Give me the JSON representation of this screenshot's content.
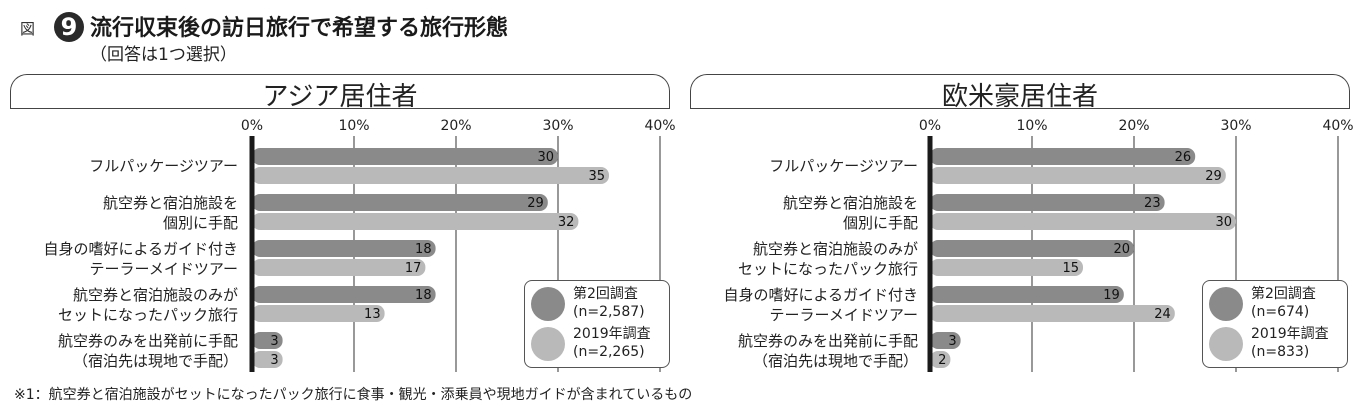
{
  "figure": {
    "label": "図",
    "number": "9",
    "title": "流行収束後の訪日旅行で希望する旅行形態",
    "subtitle": "（回答は1つ選択）"
  },
  "footnote": "※1：航空券と宿泊施設がセットになったパック旅行に食事・観光・添乗員や現地ガイドが含まれているもの",
  "colors": {
    "series_2": "#8a8a8a",
    "series_2019": "#b9b9b9",
    "axis": "#1a1a1a",
    "grid": "#555555"
  },
  "chart_data": [
    {
      "type": "bar",
      "orientation": "horizontal",
      "title": "アジア居住者",
      "xlim": [
        0,
        40
      ],
      "x_ticks": [
        "0%",
        "10%",
        "20%",
        "30%",
        "40%"
      ],
      "grid": true,
      "legend_position": "bottom-right",
      "categories": [
        [
          "フルパッケージツアー"
        ],
        [
          "航空券と宿泊施設を",
          "個別に手配"
        ],
        [
          "自身の嗜好によるガイド付き",
          "テーラーメイドツアー"
        ],
        [
          "航空券と宿泊施設のみが",
          "セットになったパック旅行"
        ],
        [
          "航空券のみを出発前に手配",
          "（宿泊先は現地で手配）"
        ]
      ],
      "series": [
        {
          "name": "第2回調査",
          "sample": "(n=2,587)",
          "values": [
            30,
            29,
            18,
            18,
            3
          ]
        },
        {
          "name": "2019年調査",
          "sample": "(n=2,265)",
          "values": [
            35,
            32,
            17,
            13,
            3
          ]
        }
      ]
    },
    {
      "type": "bar",
      "orientation": "horizontal",
      "title": "欧米豪居住者",
      "xlim": [
        0,
        40
      ],
      "x_ticks": [
        "0%",
        "10%",
        "20%",
        "30%",
        "40%"
      ],
      "grid": true,
      "legend_position": "bottom-right",
      "categories": [
        [
          "フルパッケージツアー"
        ],
        [
          "航空券と宿泊施設を",
          "個別に手配"
        ],
        [
          "航空券と宿泊施設のみが",
          "セットになったパック旅行"
        ],
        [
          "自身の嗜好によるガイド付き",
          "テーラーメイドツアー"
        ],
        [
          "航空券のみを出発前に手配",
          "（宿泊先は現地で手配）"
        ]
      ],
      "series": [
        {
          "name": "第2回調査",
          "sample": "(n=674)",
          "values": [
            26,
            23,
            20,
            19,
            3
          ]
        },
        {
          "name": "2019年調査",
          "sample": "(n=833)",
          "values": [
            29,
            30,
            15,
            24,
            2
          ]
        }
      ]
    }
  ]
}
